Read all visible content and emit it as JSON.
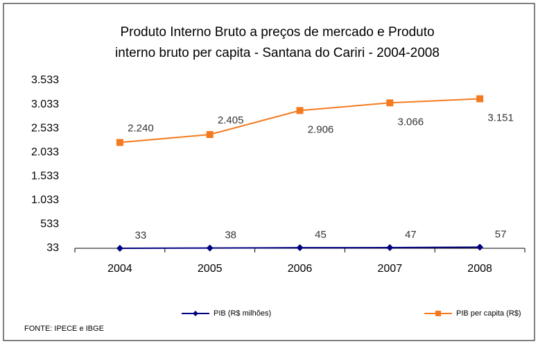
{
  "chart_data": {
    "type": "line",
    "title": [
      "Produto Interno Bruto a preços de mercado e  Produto",
      "interno bruto per capita -  Santana do Cariri - 2004-2008"
    ],
    "categories": [
      "2004",
      "2005",
      "2006",
      "2007",
      "2008"
    ],
    "series": [
      {
        "name": "PIB (R$ milhões)",
        "color": "#000080",
        "marker": "diamond",
        "values": [
          33,
          38,
          45,
          47,
          57
        ]
      },
      {
        "name": "PIB per capita (R$)",
        "color": "#f47a1f",
        "marker": "square",
        "values": [
          2240,
          2405,
          2906,
          3066,
          3151
        ],
        "value_labels": [
          "2.240",
          "2.405",
          "2.906",
          "3.066",
          "3.151"
        ]
      }
    ],
    "ylim": [
      33,
      3533
    ],
    "yticks": [
      33,
      {
        "value": 533,
        "label": "533"
      },
      {
        "value": 1033,
        "label": "1.033"
      },
      {
        "value": 1533,
        "label": "1.533"
      },
      {
        "value": 2033,
        "label": "2.033"
      },
      {
        "value": 2533,
        "label": "2.533"
      },
      {
        "value": 3033,
        "label": "3.033"
      },
      {
        "value": 3533,
        "label": "3.533"
      }
    ],
    "grid": false,
    "legend": "bottom",
    "source": "FONTE: IPECE e IBGE"
  }
}
